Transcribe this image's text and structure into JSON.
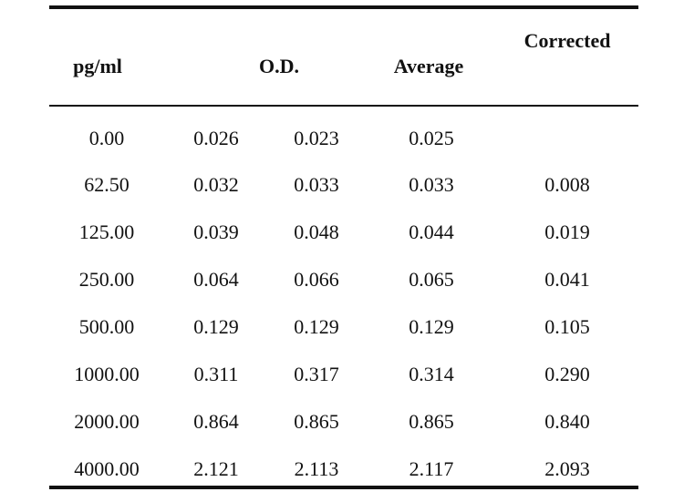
{
  "table": {
    "headers": {
      "conc": "pg/ml",
      "od": "O.D.",
      "average": "Average",
      "corrected": "Corrected"
    },
    "rows": [
      {
        "conc": "0.00",
        "od1": "0.026",
        "od2": "0.023",
        "average": "0.025",
        "corrected": ""
      },
      {
        "conc": "62.50",
        "od1": "0.032",
        "od2": "0.033",
        "average": "0.033",
        "corrected": "0.008"
      },
      {
        "conc": "125.00",
        "od1": "0.039",
        "od2": "0.048",
        "average": "0.044",
        "corrected": "0.019"
      },
      {
        "conc": "250.00",
        "od1": "0.064",
        "od2": "0.066",
        "average": "0.065",
        "corrected": "0.041"
      },
      {
        "conc": "500.00",
        "od1": "0.129",
        "od2": "0.129",
        "average": "0.129",
        "corrected": "0.105"
      },
      {
        "conc": "1000.00",
        "od1": "0.311",
        "od2": "0.317",
        "average": "0.314",
        "corrected": "0.290"
      },
      {
        "conc": "2000.00",
        "od1": "0.864",
        "od2": "0.865",
        "average": "0.865",
        "corrected": "0.840"
      },
      {
        "conc": "4000.00",
        "od1": "2.121",
        "od2": "2.113",
        "average": "2.117",
        "corrected": "2.093"
      }
    ]
  }
}
